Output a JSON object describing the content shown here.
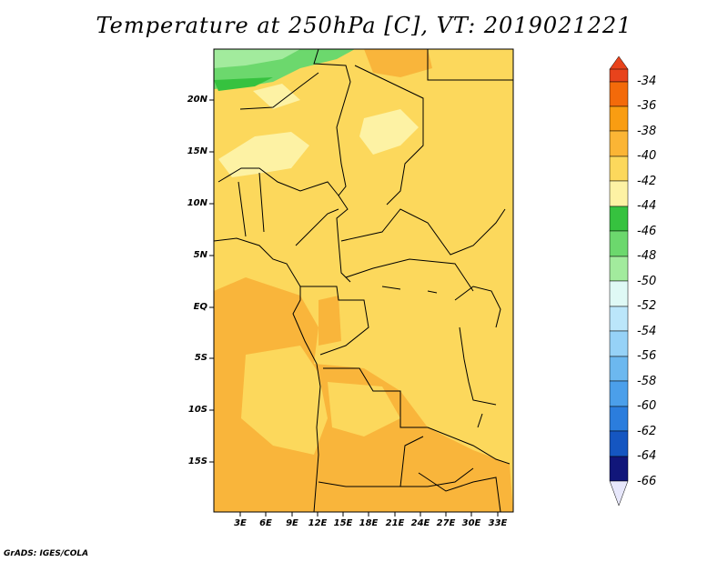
{
  "title": "Temperature at 250hPa [C], VT: 2019021221",
  "credit": "GrADS: IGES/COLA",
  "lat_labels": [
    "20N",
    "15N",
    "10N",
    "5N",
    "EQ",
    "5S",
    "10S",
    "15S"
  ],
  "lon_labels": [
    "3E",
    "6E",
    "9E",
    "12E",
    "15E",
    "18E",
    "21E",
    "24E",
    "27E",
    "30E",
    "33E"
  ],
  "colorbar": {
    "labels": [
      "-34",
      "-36",
      "-38",
      "-40",
      "-42",
      "-44",
      "-46",
      "-48",
      "-50",
      "-52",
      "-54",
      "-56",
      "-58",
      "-60",
      "-62",
      "-64",
      "-66"
    ],
    "colors": [
      "#e8431c",
      "#f36a0a",
      "#f99d12",
      "#fbb535",
      "#fcd85c",
      "#fdf2a4",
      "#36c23f",
      "#6cd86d",
      "#a2eb9d",
      "#dff9f5",
      "#bbe6fa",
      "#96d2f7",
      "#6cb8ef",
      "#4b9fea",
      "#2b7ddd",
      "#1556c1",
      "#0a2b94",
      "#11167a",
      "#e7e7fb"
    ]
  }
}
